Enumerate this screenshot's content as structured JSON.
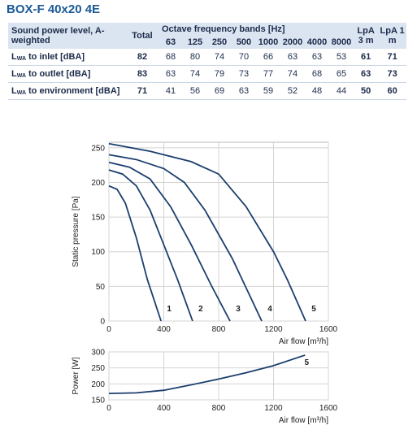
{
  "title": "BOX-F 40x20 4E",
  "table": {
    "header": {
      "label": "Sound power level, A-weighted",
      "total": "Total",
      "bands_title": "Octave frequency bands [Hz]",
      "lpa3": "LpA 3 m",
      "lpa1": "LpA 1 m",
      "bands": [
        63,
        125,
        250,
        500,
        1000,
        2000,
        4000,
        8000
      ]
    },
    "rows": [
      {
        "label": {
          "main": "L",
          "sub": "WA",
          "text": "to inlet [dBA]"
        },
        "total": 82,
        "bands": [
          68,
          80,
          74,
          70,
          66,
          63,
          63,
          53
        ],
        "lpa3": 61,
        "lpa1": 71
      },
      {
        "label": {
          "main": "L",
          "sub": "WA",
          "text": "to outlet [dBA]"
        },
        "total": 83,
        "bands": [
          63,
          74,
          79,
          73,
          77,
          74,
          68,
          65
        ],
        "lpa3": 63,
        "lpa1": 73
      },
      {
        "label": {
          "main": "L",
          "sub": "WA",
          "text": "to environment [dBA]"
        },
        "total": 71,
        "bands": [
          41,
          56,
          69,
          63,
          59,
          52,
          48,
          44
        ],
        "lpa3": 50,
        "lpa1": 60
      }
    ]
  },
  "chart_data": [
    {
      "type": "line",
      "ylabel": "Static pressure [Pa]",
      "xlabel": "Air flow [m³/h]",
      "xlim": [
        0,
        1600
      ],
      "xticks": [
        0,
        400,
        800,
        1200,
        1600
      ],
      "ylim": [
        0,
        258
      ],
      "yticks": [
        0,
        50,
        100,
        150,
        200,
        250
      ],
      "grid": true,
      "series": [
        {
          "name": "1",
          "color": "#1b3f6e",
          "x": [
            0,
            60,
            120,
            200,
            280,
            380
          ],
          "values": [
            195,
            190,
            170,
            120,
            60,
            0
          ]
        },
        {
          "name": "2",
          "color": "#1b3f6e",
          "x": [
            0,
            100,
            200,
            300,
            400,
            500,
            610
          ],
          "values": [
            218,
            212,
            195,
            160,
            110,
            60,
            0
          ]
        },
        {
          "name": "3",
          "color": "#1b3f6e",
          "x": [
            0,
            150,
            300,
            450,
            600,
            750,
            883
          ],
          "values": [
            229,
            222,
            205,
            165,
            110,
            50,
            0
          ]
        },
        {
          "name": "4",
          "color": "#1b3f6e",
          "x": [
            0,
            200,
            400,
            550,
            700,
            900,
            1114
          ],
          "values": [
            240,
            233,
            220,
            200,
            160,
            90,
            0
          ]
        },
        {
          "name": "5",
          "color": "#1b3f6e",
          "x": [
            0,
            300,
            600,
            800,
            1000,
            1200,
            1300,
            1434
          ],
          "values": [
            256,
            245,
            230,
            212,
            165,
            100,
            60,
            0
          ]
        }
      ]
    },
    {
      "type": "line",
      "ylabel": "Power [W]",
      "xlabel": "Air flow [m³/h]",
      "xlim": [
        0,
        1600
      ],
      "xticks": [
        0,
        400,
        800,
        1200,
        1600
      ],
      "ylim": [
        150,
        300
      ],
      "yticks": [
        150,
        200,
        250,
        300
      ],
      "grid": true,
      "series": [
        {
          "name": "5",
          "color": "#1b3f6e",
          "x": [
            0,
            200,
            400,
            600,
            800,
            1000,
            1200,
            1430
          ],
          "values": [
            170,
            172,
            180,
            197,
            215,
            235,
            257,
            290
          ]
        }
      ]
    }
  ]
}
